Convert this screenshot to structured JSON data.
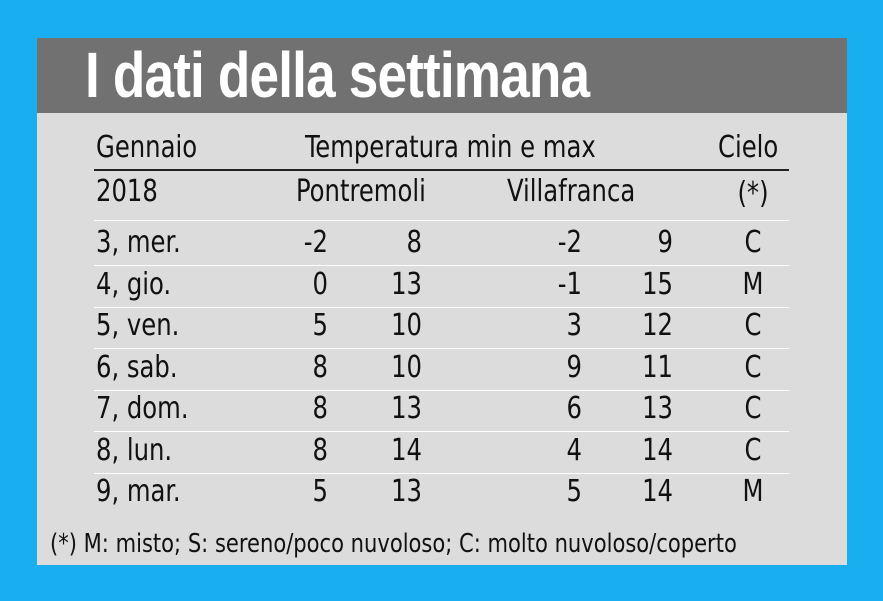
{
  "title": "I dati della settimana",
  "header": {
    "month": "Gennaio",
    "year": "2018",
    "temperature": "Temperatura min e max",
    "city1": "Pontremoli",
    "city2": "Villafranca",
    "sky": "Cielo",
    "sky_note": "(*)"
  },
  "rows": [
    {
      "day": "3, mer.",
      "p_min": "-2",
      "p_max": "8",
      "v_min": "-2",
      "v_max": "9",
      "sky": "C"
    },
    {
      "day": "4, gio.",
      "p_min": "0",
      "p_max": "13",
      "v_min": "-1",
      "v_max": "15",
      "sky": "M"
    },
    {
      "day": "5, ven.",
      "p_min": "5",
      "p_max": "10",
      "v_min": "3",
      "v_max": "12",
      "sky": "C"
    },
    {
      "day": "6, sab.",
      "p_min": "8",
      "p_max": "10",
      "v_min": "9",
      "v_max": "11",
      "sky": "C"
    },
    {
      "day": "7, dom.",
      "p_min": "8",
      "p_max": "13",
      "v_min": "6",
      "v_max": "13",
      "sky": "C"
    },
    {
      "day": "8, lun.",
      "p_min": "8",
      "p_max": "14",
      "v_min": "4",
      "v_max": "14",
      "sky": "C"
    },
    {
      "day": "9, mar.",
      "p_min": "5",
      "p_max": "13",
      "v_min": "5",
      "v_max": "14",
      "sky": "M"
    }
  ],
  "footnote": "(*) M: misto; S: sereno/poco nuvoloso; C: molto nuvoloso/coperto"
}
